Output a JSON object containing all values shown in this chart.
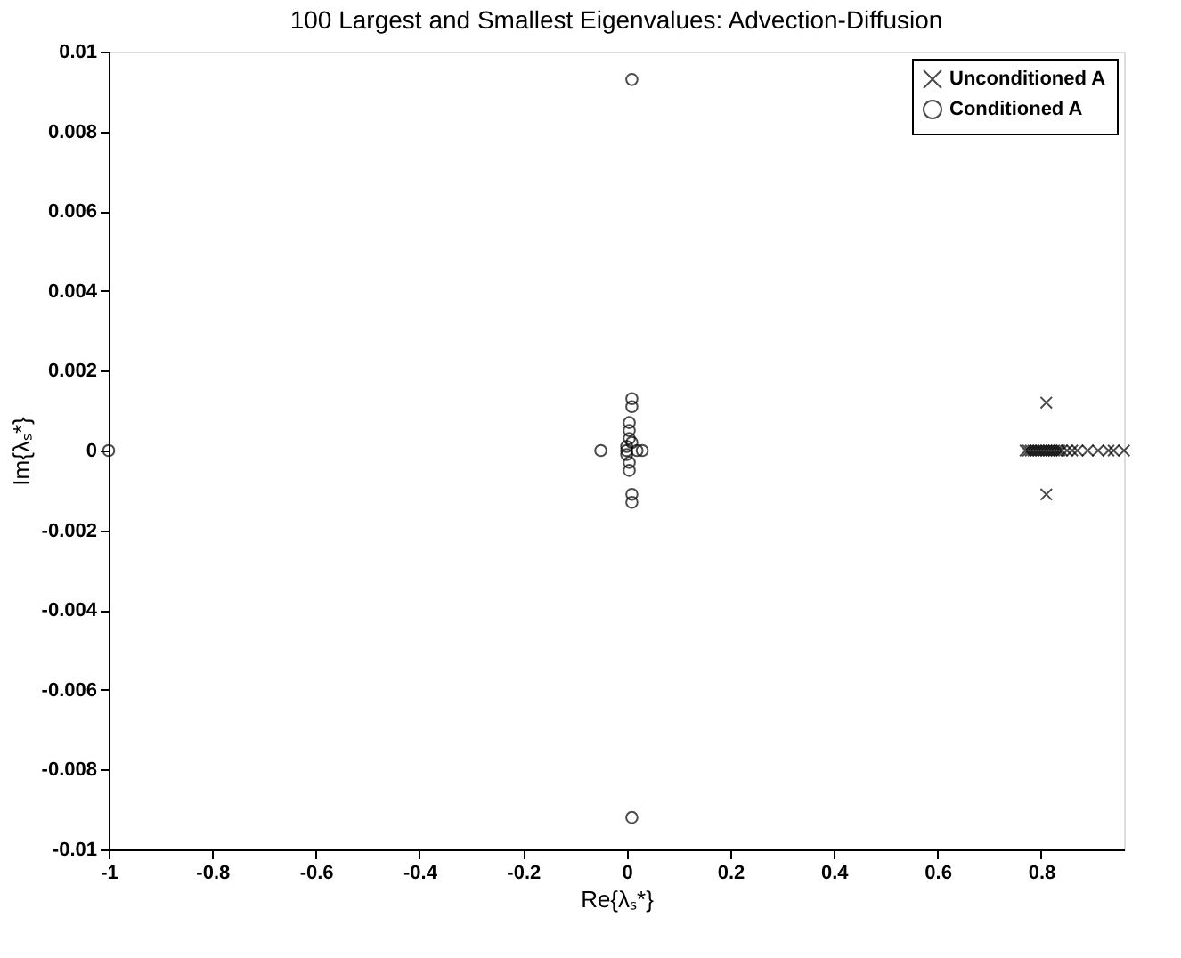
{
  "chart_data": {
    "type": "scatter",
    "title": "100 Largest and Smallest Eigenvalues: Advection-Diffusion",
    "xlabel": "Re{λₛ*}",
    "ylabel": "Im{λₛ*}",
    "xlim": [
      -1,
      0.96
    ],
    "ylim": [
      -0.01,
      0.01
    ],
    "xticks": [
      -1,
      -0.8,
      -0.6,
      -0.4,
      -0.2,
      0,
      0.2,
      0.4,
      0.6,
      0.8
    ],
    "yticks": [
      -0.01,
      -0.008,
      -0.006,
      -0.004,
      -0.002,
      0,
      0.002,
      0.004,
      0.006,
      0.008,
      0.01
    ],
    "grid": false,
    "legend": "top right",
    "series": [
      {
        "name": "Unconditioned A",
        "color": "#000000",
        "marker": "cross",
        "x": [
          0.77,
          0.775,
          0.78,
          0.785,
          0.79,
          0.795,
          0.8,
          0.805,
          0.81,
          0.815,
          0.82,
          0.825,
          0.83,
          0.835,
          0.84,
          0.85,
          0.86,
          0.87,
          0.89,
          0.91,
          0.93,
          0.94,
          0.81,
          0.81,
          0.96
        ],
        "values": [
          0,
          0,
          0,
          0,
          0,
          0,
          0,
          0,
          0,
          0,
          0,
          0,
          0,
          0,
          0,
          0,
          0,
          0,
          0,
          0,
          0,
          0,
          0.0012,
          -0.0011,
          0
        ]
      },
      {
        "name": "Conditioned A",
        "color": "#000000",
        "marker": "circle",
        "x": [
          0.01,
          0.01,
          0.01,
          0.01,
          0.005,
          0.005,
          0.005,
          0.0,
          0.0,
          0.0,
          0.005,
          0.005,
          0.01,
          0.01,
          0.01,
          -0.05,
          0.03,
          0.02,
          -1
        ],
        "values": [
          0.0093,
          -0.0092,
          0.0013,
          0.0011,
          0.0007,
          0.0005,
          0.0003,
          0.0001,
          0,
          -0.0001,
          -0.0003,
          -0.0005,
          -0.0011,
          -0.0013,
          0.0002,
          0,
          0,
          0,
          0
        ]
      }
    ]
  }
}
